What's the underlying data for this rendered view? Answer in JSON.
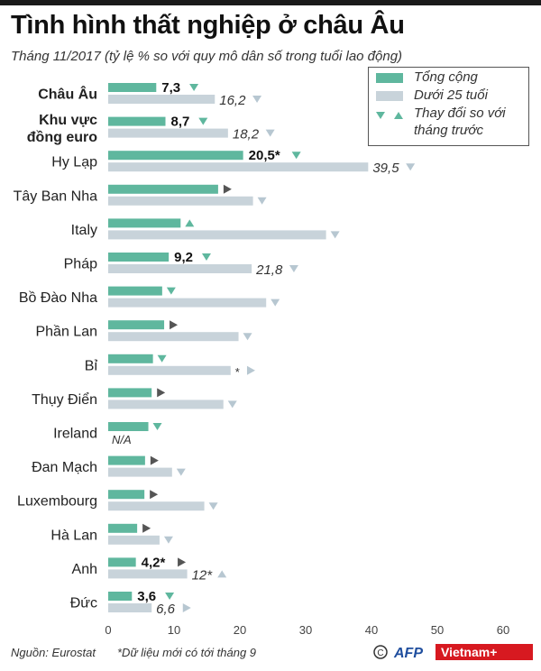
{
  "header": {
    "title": "Tình hình thất nghiệp ở châu Âu",
    "subtitle": "Tháng 11/2017  (tỷ lệ % so với quy mô dân số trong tuổi lao động)"
  },
  "legend": {
    "total": "Tổng cộng",
    "youth": "Dưới 25 tuổi",
    "change_line1": "Thay đổi so với",
    "change_line2": "tháng trước"
  },
  "footer": {
    "source": "Nguồn: Eurostat",
    "note": "*Dữ liệu mới có tới tháng 9",
    "brand": "Vietnam+"
  },
  "colors": {
    "total": "#5fb79e",
    "youth": "#c8d3da",
    "arrow_youth": "#b7c7d1",
    "arrow_neutral": "#555555"
  },
  "chart_data": {
    "type": "bar",
    "orientation": "horizontal",
    "xlim": [
      0,
      60
    ],
    "xticks": [
      0,
      10,
      20,
      30,
      40,
      50,
      60
    ],
    "categories": [
      "Châu Âu",
      "Khu vực đồng euro",
      "Hy Lạp",
      "Tây Ban Nha",
      "Italy",
      "Pháp",
      "Bồ Đào Nha",
      "Phần Lan",
      "Bỉ",
      "Thụy Điển",
      "Ireland",
      "Đan Mạch",
      "Luxembourg",
      "Hà Lan",
      "Anh",
      "Đức"
    ],
    "category_lines": [
      [
        "Châu Âu"
      ],
      [
        "Khu vực",
        "đồng euro"
      ],
      [
        "Hy Lạp"
      ],
      [
        "Tây Ban Nha"
      ],
      [
        "Italy"
      ],
      [
        "Pháp"
      ],
      [
        "Bồ Đào Nha"
      ],
      [
        "Phần Lan"
      ],
      [
        "Bỉ"
      ],
      [
        "Thụy Điển"
      ],
      [
        "Ireland"
      ],
      [
        "Đan Mạch"
      ],
      [
        "Luxembourg"
      ],
      [
        "Hà Lan"
      ],
      [
        "Anh"
      ],
      [
        "Đức"
      ]
    ],
    "bold_categories": [
      0,
      1
    ],
    "series": [
      {
        "name": "Tổng cộng",
        "values": [
          7.3,
          8.7,
          20.5,
          16.7,
          11.0,
          9.2,
          8.2,
          8.5,
          6.8,
          6.6,
          6.1,
          5.6,
          5.5,
          4.4,
          4.2,
          3.6
        ],
        "labels": [
          "7,3",
          "8,7",
          "20,5*",
          "",
          "",
          "9,2",
          "",
          "",
          "",
          "",
          "",
          "",
          "",
          "",
          "4,2*",
          "3,6"
        ],
        "change": [
          "down",
          "down",
          "down",
          "right",
          "up",
          "down",
          "down",
          "right",
          "down",
          "right",
          "down",
          "right",
          "right",
          "right",
          "right",
          "down"
        ]
      },
      {
        "name": "Dưới 25 tuổi",
        "values": [
          16.2,
          18.2,
          39.5,
          22.0,
          33.1,
          21.8,
          24.0,
          19.8,
          18.6,
          17.5,
          null,
          9.7,
          14.6,
          7.8,
          12.0,
          6.6
        ],
        "labels": [
          "16,2",
          "18,2",
          "39,5",
          "",
          "",
          "21,8",
          "",
          "",
          "*",
          "",
          "N/A",
          "",
          "",
          "",
          "12*",
          "6,6"
        ],
        "change": [
          "down",
          "down",
          "down",
          "down",
          "down",
          "down",
          "down",
          "down",
          "right",
          "down",
          "",
          "down",
          "down",
          "down",
          "up",
          "right"
        ]
      }
    ]
  }
}
